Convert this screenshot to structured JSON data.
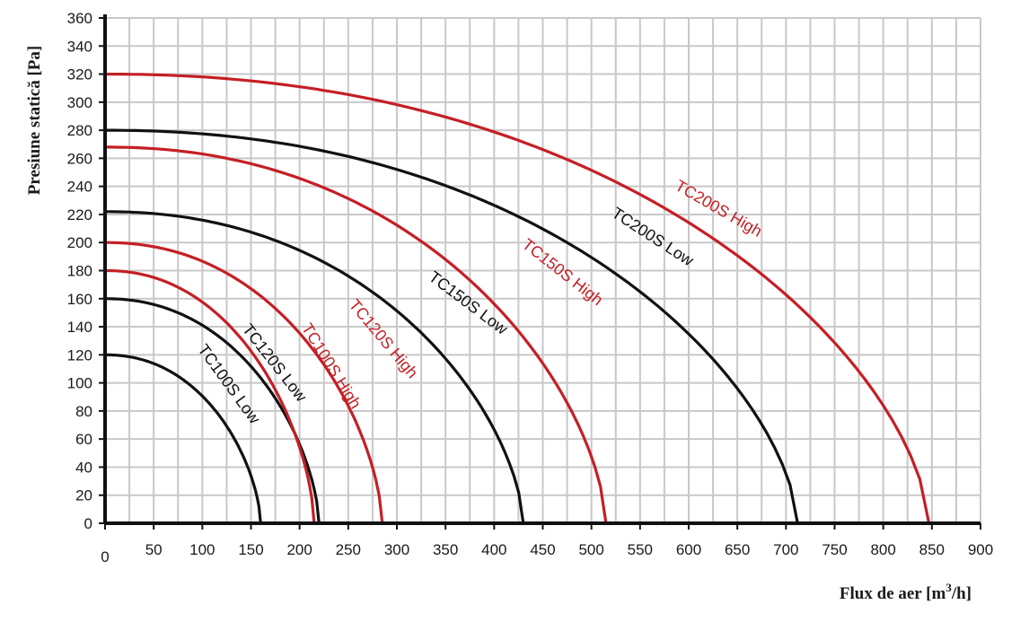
{
  "chart_data": {
    "type": "line",
    "title": "",
    "xlabel": "Flux de aer [m",
    "xlabel_sup": "3",
    "xlabel_end": "/h]",
    "ylabel": "Presiune statică [Pa]",
    "xlim": [
      0,
      900
    ],
    "ylim": [
      0,
      360
    ],
    "xticks": [
      0,
      50,
      100,
      150,
      200,
      250,
      300,
      350,
      400,
      450,
      500,
      550,
      600,
      650,
      700,
      750,
      800,
      850,
      900
    ],
    "yticks": [
      0,
      20,
      40,
      60,
      80,
      100,
      120,
      140,
      160,
      180,
      200,
      220,
      240,
      260,
      280,
      300,
      320,
      340,
      360
    ],
    "grid": true,
    "grid_color": "#c8c8c8",
    "legend": "none",
    "series": [
      {
        "name": "TC100S Low",
        "color": "#111111",
        "shut_off_pressure": 120,
        "max_flow": 160
      },
      {
        "name": "TC120S Low",
        "color": "#111111",
        "shut_off_pressure": 160,
        "max_flow": 220
      },
      {
        "name": "TC100S High",
        "color": "#c41f25",
        "shut_off_pressure": 180,
        "max_flow": 215
      },
      {
        "name": "TC120S High",
        "color": "#c41f25",
        "shut_off_pressure": 200,
        "max_flow": 285
      },
      {
        "name": "TC150S Low",
        "color": "#111111",
        "shut_off_pressure": 222,
        "max_flow": 430
      },
      {
        "name": "TC150S High",
        "color": "#c41f25",
        "shut_off_pressure": 268,
        "max_flow": 515
      },
      {
        "name": "TC200S Low",
        "color": "#111111",
        "shut_off_pressure": 280,
        "max_flow": 712
      },
      {
        "name": "TC200S High",
        "color": "#c41f25",
        "shut_off_pressure": 320,
        "max_flow": 847
      }
    ],
    "curve_labels": [
      {
        "text": "TC100S Low",
        "color": "#111111",
        "x": 123,
        "y": 97,
        "angle": 54
      },
      {
        "text": "TC120S Low",
        "color": "#111111",
        "x": 170,
        "y": 112,
        "angle": 52
      },
      {
        "text": "TC100S High",
        "color": "#c41f25",
        "x": 228,
        "y": 110,
        "angle": 58
      },
      {
        "text": "TC120S High",
        "color": "#c41f25",
        "x": 282,
        "y": 129,
        "angle": 50
      },
      {
        "text": "TC150S Low",
        "color": "#111111",
        "x": 370,
        "y": 154,
        "angle": 37
      },
      {
        "text": "TC150S High",
        "color": "#c41f25",
        "x": 467,
        "y": 176,
        "angle": 38
      },
      {
        "text": "TC200S Low",
        "color": "#111111",
        "x": 560,
        "y": 201,
        "angle": 33
      },
      {
        "text": "TC200S High",
        "color": "#c41f25",
        "x": 628,
        "y": 221,
        "angle": 30
      }
    ]
  }
}
